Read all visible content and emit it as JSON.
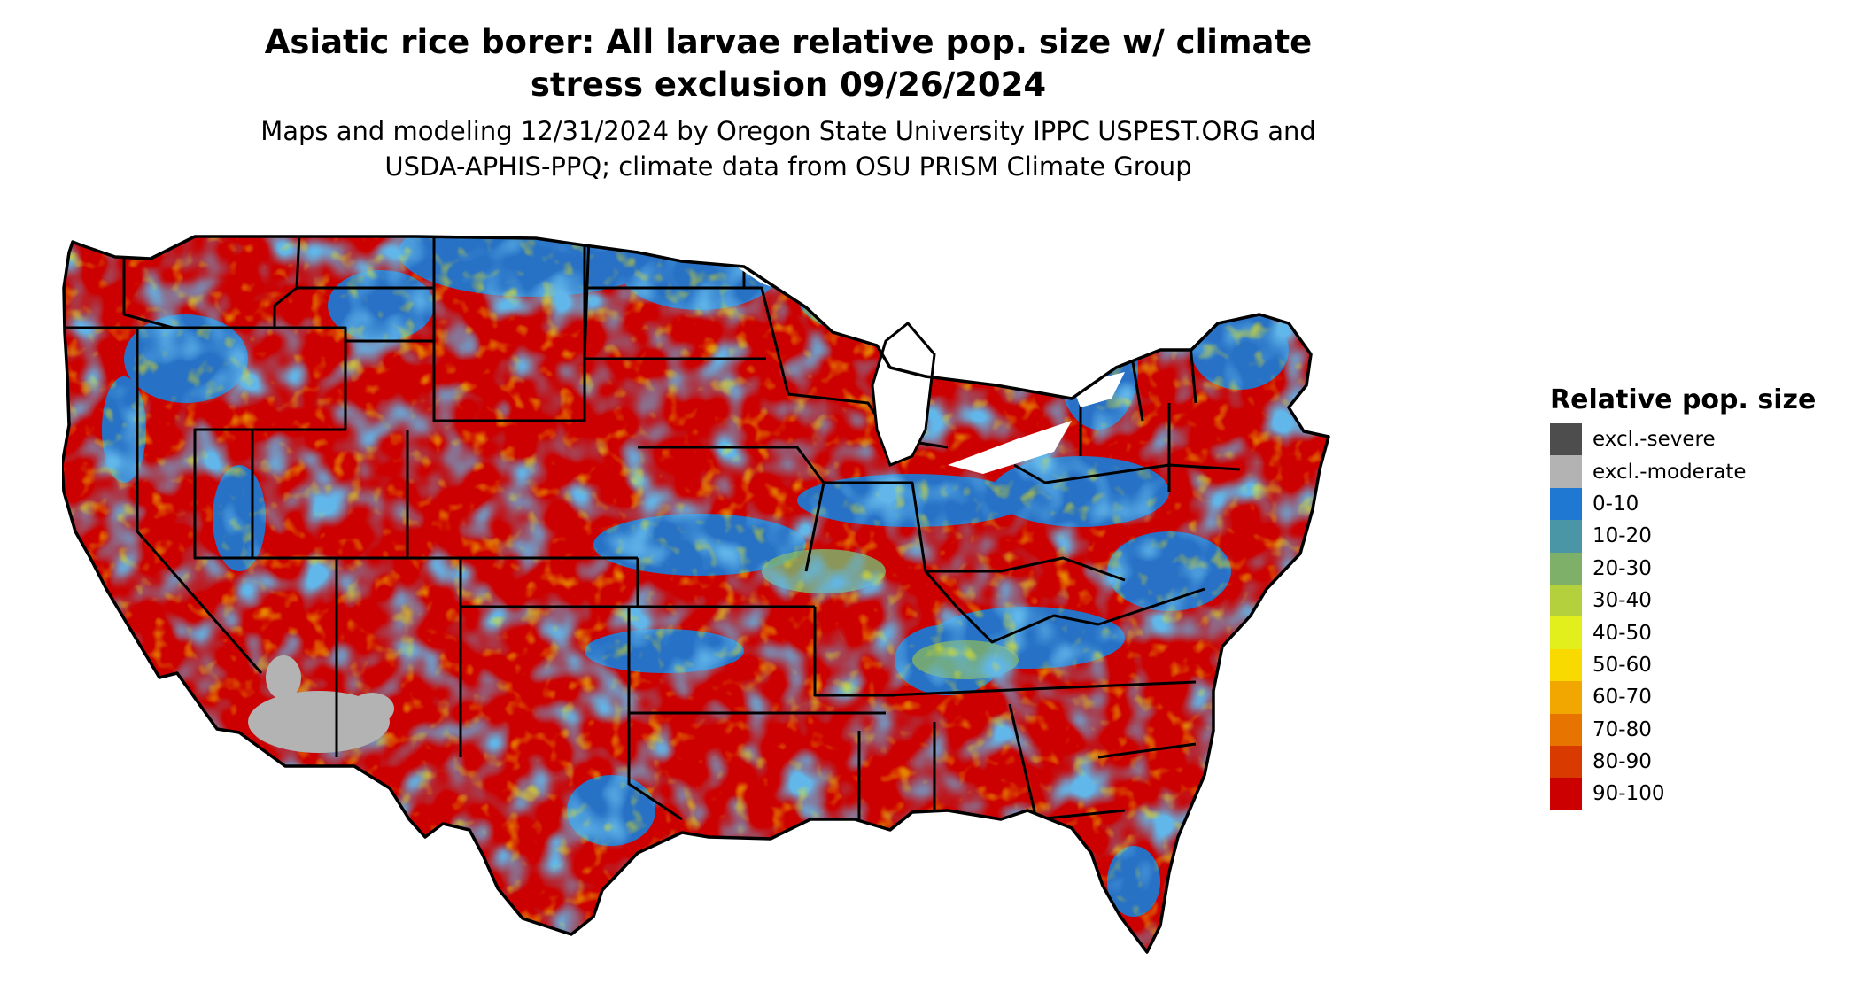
{
  "title_line1": "Asiatic rice borer: All larvae relative pop. size w/ climate",
  "title_line2": "stress exclusion 09/26/2024",
  "subtitle_line1": "Maps and modeling 12/31/2024 by Oregon State University IPPC USPEST.ORG and",
  "subtitle_line2": "USDA-APHIS-PPQ; climate data from OSU PRISM Climate Group",
  "legend": {
    "title": "Relative pop. size",
    "items": [
      {
        "label": "excl.-severe",
        "color": "#4d4d4d"
      },
      {
        "label": "excl.-moderate",
        "color": "#b3b3b3"
      },
      {
        "label": "0-10",
        "color": "#1f78d1"
      },
      {
        "label": "10-20",
        "color": "#4a95a6"
      },
      {
        "label": "20-30",
        "color": "#7fb06a"
      },
      {
        "label": "30-40",
        "color": "#b4d03c"
      },
      {
        "label": "40-50",
        "color": "#e3ef1d"
      },
      {
        "label": "50-60",
        "color": "#f9da00"
      },
      {
        "label": "60-70",
        "color": "#f2a700"
      },
      {
        "label": "70-80",
        "color": "#e87400"
      },
      {
        "label": "80-90",
        "color": "#d83a00"
      },
      {
        "label": "90-100",
        "color": "#cc0000"
      }
    ]
  }
}
